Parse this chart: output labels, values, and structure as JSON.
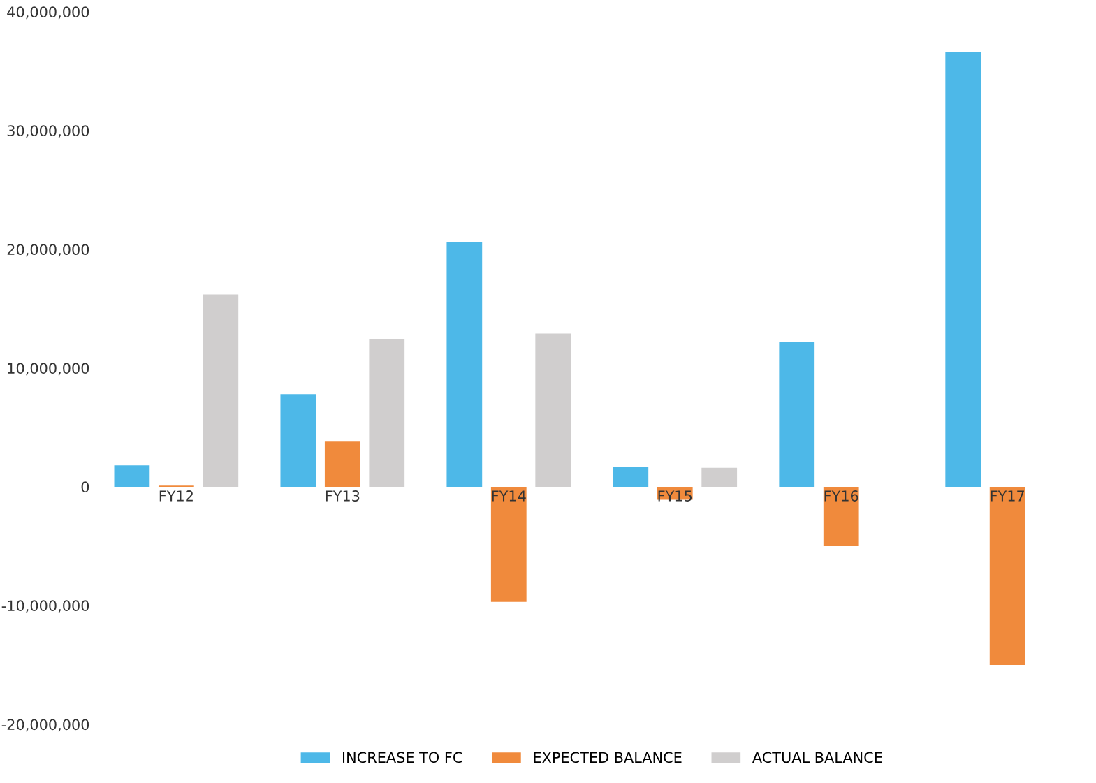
{
  "chart_data": {
    "type": "bar",
    "categories": [
      "FY12",
      "FY13",
      "FY14",
      "FY15",
      "FY16",
      "FY17"
    ],
    "series": [
      {
        "name": "INCREASE TO FC",
        "color": "#4db8e8",
        "values": [
          1800000,
          7800000,
          20600000,
          1700000,
          12200000,
          36600000
        ]
      },
      {
        "name": "EXPECTED BALANCE",
        "color": "#f08a3c",
        "values": [
          100000,
          3800000,
          -9700000,
          -1100000,
          -5000000,
          -15000000
        ]
      },
      {
        "name": "ACTUAL BALANCE",
        "color": "#d0cece",
        "values": [
          16200000,
          12400000,
          12900000,
          1600000,
          null,
          null
        ]
      }
    ],
    "ylim": [
      -20000000,
      40000000
    ],
    "yticks": [
      {
        "value": -20000000,
        "label": "-20,000,000"
      },
      {
        "value": -10000000,
        "label": "-10,000,000"
      },
      {
        "value": 0,
        "label": "0"
      },
      {
        "value": 10000000,
        "label": "10,000,000"
      },
      {
        "value": 20000000,
        "label": "20,000,000"
      },
      {
        "value": 30000000,
        "label": "30,000,000"
      },
      {
        "value": 40000000,
        "label": "40,000,000"
      }
    ],
    "grid": false,
    "legend": "bottom"
  }
}
